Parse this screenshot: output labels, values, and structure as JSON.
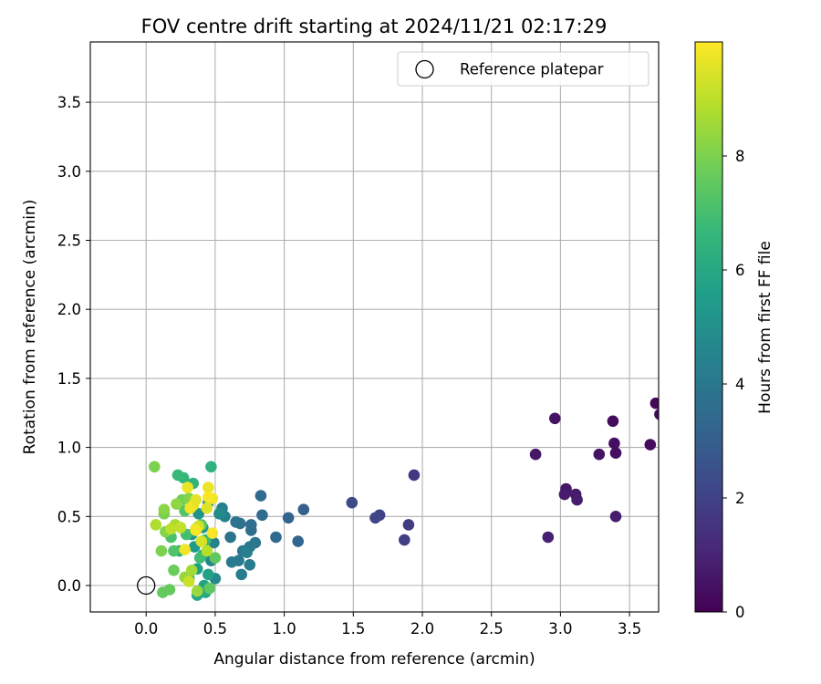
{
  "chart_data": {
    "type": "scatter",
    "title": "FOV centre drift starting at 2024/11/21 02:17:29",
    "xlabel": "Angular distance from reference (arcmin)",
    "ylabel": "Rotation from reference (arcmin)",
    "xlim": [
      -0.4,
      3.7
    ],
    "ylim": [
      -0.19,
      3.93
    ],
    "xticks": [
      "0.0",
      "0.5",
      "1.0",
      "1.5",
      "2.0",
      "2.5",
      "3.0",
      "3.5"
    ],
    "yticks": [
      "0.0",
      "0.5",
      "1.0",
      "1.5",
      "2.0",
      "2.5",
      "3.0",
      "3.5"
    ],
    "grid": true,
    "legend": {
      "position": "top-right",
      "entries": [
        "Reference platepar"
      ]
    },
    "reference_point": {
      "x": 0.0,
      "y": 0.0
    },
    "colorbar": {
      "label": "Hours from first FF file",
      "range": [
        0,
        10
      ],
      "ticks": [
        "0",
        "2",
        "4",
        "6",
        "8"
      ],
      "colormap": "viridis"
    },
    "points": [
      [
        3.69,
        1.32,
        0.2
      ],
      [
        3.72,
        1.24,
        0.2
      ],
      [
        3.65,
        1.02,
        0.3
      ],
      [
        3.38,
        1.19,
        0.3
      ],
      [
        3.39,
        1.03,
        0.4
      ],
      [
        3.4,
        0.96,
        0.4
      ],
      [
        3.28,
        0.95,
        0.5
      ],
      [
        2.96,
        1.21,
        0.5
      ],
      [
        2.82,
        0.95,
        0.6
      ],
      [
        3.04,
        0.7,
        0.6
      ],
      [
        3.03,
        0.66,
        0.7
      ],
      [
        3.11,
        0.66,
        0.7
      ],
      [
        3.12,
        0.62,
        0.8
      ],
      [
        3.4,
        0.5,
        0.8
      ],
      [
        2.91,
        0.35,
        0.9
      ],
      [
        1.94,
        0.8,
        1.6
      ],
      [
        1.9,
        0.44,
        1.8
      ],
      [
        1.87,
        0.33,
        1.9
      ],
      [
        1.69,
        0.51,
        2.0
      ],
      [
        1.66,
        0.49,
        2.1
      ],
      [
        1.49,
        0.6,
        2.3
      ],
      [
        1.14,
        0.55,
        3.0
      ],
      [
        1.03,
        0.49,
        3.2
      ],
      [
        1.1,
        0.32,
        3.3
      ],
      [
        0.94,
        0.35,
        3.4
      ],
      [
        0.83,
        0.65,
        3.4
      ],
      [
        0.84,
        0.51,
        3.5
      ],
      [
        0.76,
        0.44,
        3.6
      ],
      [
        0.76,
        0.4,
        3.6
      ],
      [
        0.68,
        0.45,
        3.7
      ],
      [
        0.65,
        0.46,
        3.8
      ],
      [
        0.61,
        0.35,
        3.8
      ],
      [
        0.79,
        0.31,
        3.9
      ],
      [
        0.75,
        0.28,
        4.0
      ],
      [
        0.7,
        0.25,
        4.0
      ],
      [
        0.67,
        0.18,
        4.1
      ],
      [
        0.62,
        0.17,
        4.1
      ],
      [
        0.75,
        0.15,
        4.2
      ],
      [
        0.69,
        0.08,
        4.2
      ],
      [
        0.73,
        0.24,
        4.3
      ],
      [
        0.55,
        0.56,
        4.4
      ],
      [
        0.57,
        0.5,
        4.4
      ],
      [
        0.49,
        0.31,
        4.5
      ],
      [
        0.47,
        0.18,
        4.6
      ],
      [
        0.5,
        0.05,
        4.7
      ],
      [
        0.53,
        0.52,
        4.8
      ],
      [
        0.45,
        0.6,
        5.0
      ],
      [
        0.38,
        0.52,
        5.1
      ],
      [
        0.41,
        0.42,
        5.2
      ],
      [
        0.33,
        0.37,
        5.3
      ],
      [
        0.35,
        0.28,
        5.4
      ],
      [
        0.41,
        0.22,
        5.5
      ],
      [
        0.37,
        0.12,
        5.6
      ],
      [
        0.45,
        0.08,
        5.7
      ],
      [
        0.42,
        0.0,
        5.8
      ],
      [
        0.37,
        -0.07,
        5.9
      ],
      [
        0.43,
        -0.05,
        6.0
      ],
      [
        0.31,
        0.05,
        6.1
      ],
      [
        0.24,
        0.25,
        6.2
      ],
      [
        0.47,
        0.86,
        6.4
      ],
      [
        0.34,
        0.74,
        6.5
      ],
      [
        0.27,
        0.78,
        6.6
      ],
      [
        0.23,
        0.8,
        6.7
      ],
      [
        0.43,
        0.33,
        6.8
      ],
      [
        0.39,
        0.2,
        6.9
      ],
      [
        0.29,
        0.37,
        7.0
      ],
      [
        0.18,
        0.35,
        7.1
      ],
      [
        0.2,
        0.25,
        7.2
      ],
      [
        0.28,
        0.54,
        7.3
      ],
      [
        0.4,
        0.44,
        7.4
      ],
      [
        0.46,
        -0.02,
        7.5
      ],
      [
        0.5,
        0.2,
        7.5
      ],
      [
        0.12,
        -0.05,
        7.6
      ],
      [
        0.17,
        -0.03,
        7.6
      ],
      [
        0.2,
        0.11,
        7.7
      ],
      [
        0.26,
        0.62,
        7.8
      ],
      [
        0.13,
        0.52,
        7.9
      ],
      [
        0.06,
        0.86,
        8.0
      ],
      [
        0.11,
        0.25,
        8.0
      ],
      [
        0.14,
        0.39,
        8.1
      ],
      [
        0.31,
        0.63,
        8.1
      ],
      [
        0.13,
        0.55,
        8.2
      ],
      [
        0.22,
        0.59,
        8.3
      ],
      [
        0.28,
        0.06,
        8.4
      ],
      [
        0.37,
        -0.04,
        8.5
      ],
      [
        0.33,
        0.11,
        8.6
      ],
      [
        0.21,
        0.44,
        8.7
      ],
      [
        0.07,
        0.44,
        8.8
      ],
      [
        0.44,
        0.25,
        8.9
      ],
      [
        0.18,
        0.41,
        9.0
      ],
      [
        0.25,
        0.42,
        9.1
      ],
      [
        0.31,
        0.03,
        9.2
      ],
      [
        0.38,
        0.43,
        9.3
      ],
      [
        0.36,
        0.41,
        9.3
      ],
      [
        0.4,
        0.32,
        9.4
      ],
      [
        0.44,
        0.56,
        9.5
      ],
      [
        0.34,
        0.58,
        9.5
      ],
      [
        0.36,
        0.62,
        9.6
      ],
      [
        0.45,
        0.71,
        9.7
      ],
      [
        0.3,
        0.71,
        9.7
      ],
      [
        0.32,
        0.56,
        9.8
      ],
      [
        0.48,
        0.63,
        9.8
      ],
      [
        0.28,
        0.26,
        9.8
      ],
      [
        0.48,
        0.38,
        9.9
      ],
      [
        0.36,
        0.4,
        9.9
      ],
      [
        0.45,
        0.64,
        9.9
      ]
    ]
  },
  "colors": {
    "grid": "#b0b0b0",
    "axes": "#000000",
    "viridis_stops": [
      "#440154",
      "#482878",
      "#3e4989",
      "#31688e",
      "#26828e",
      "#1f9e89",
      "#35b779",
      "#6ece58",
      "#b5de2b",
      "#fde725"
    ]
  }
}
